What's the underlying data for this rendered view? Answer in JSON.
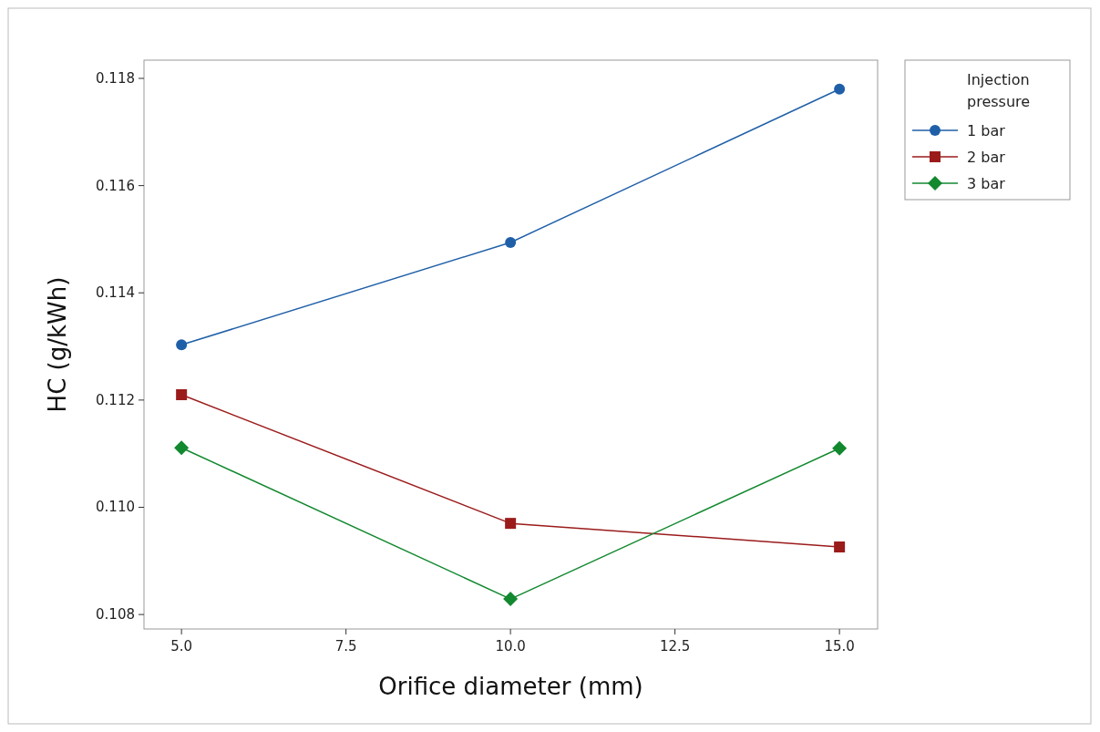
{
  "chart_data": {
    "type": "line",
    "xlabel": "Orifice diameter (mm)",
    "ylabel": "HC (g/kWh)",
    "legend_title": "Injection pressure",
    "legend": "top right",
    "grid": false,
    "x": [
      5,
      10,
      15
    ],
    "xlim": [
      4.43,
      15.58
    ],
    "xticks": [
      {
        "value": 5,
        "label": "5.0"
      },
      {
        "value": 7.5,
        "label": "7.5"
      },
      {
        "value": 10,
        "label": "10.0"
      },
      {
        "value": 12.5,
        "label": "12.5"
      },
      {
        "value": 15,
        "label": "15.0"
      }
    ],
    "ylim": [
      0.10773,
      0.11834
    ],
    "yticks": [
      {
        "value": 0.108,
        "label": "0.108"
      },
      {
        "value": 0.11,
        "label": "0.110"
      },
      {
        "value": 0.112,
        "label": "0.112"
      },
      {
        "value": 0.114,
        "label": "0.114"
      },
      {
        "value": 0.116,
        "label": "0.116"
      },
      {
        "value": 0.118,
        "label": "0.118"
      }
    ],
    "series": [
      {
        "name": "1 bar",
        "color": "#1f5fa8",
        "marker": "circle",
        "values": [
          0.11303,
          0.11494,
          0.1178
        ]
      },
      {
        "name": "2 bar",
        "color": "#9b1b1b",
        "marker": "square",
        "values": [
          0.1121,
          0.1097,
          0.10926
        ]
      },
      {
        "name": "3 bar",
        "color": "#12882f",
        "marker": "diamond",
        "values": [
          0.11111,
          0.10829,
          0.1111
        ]
      }
    ]
  }
}
